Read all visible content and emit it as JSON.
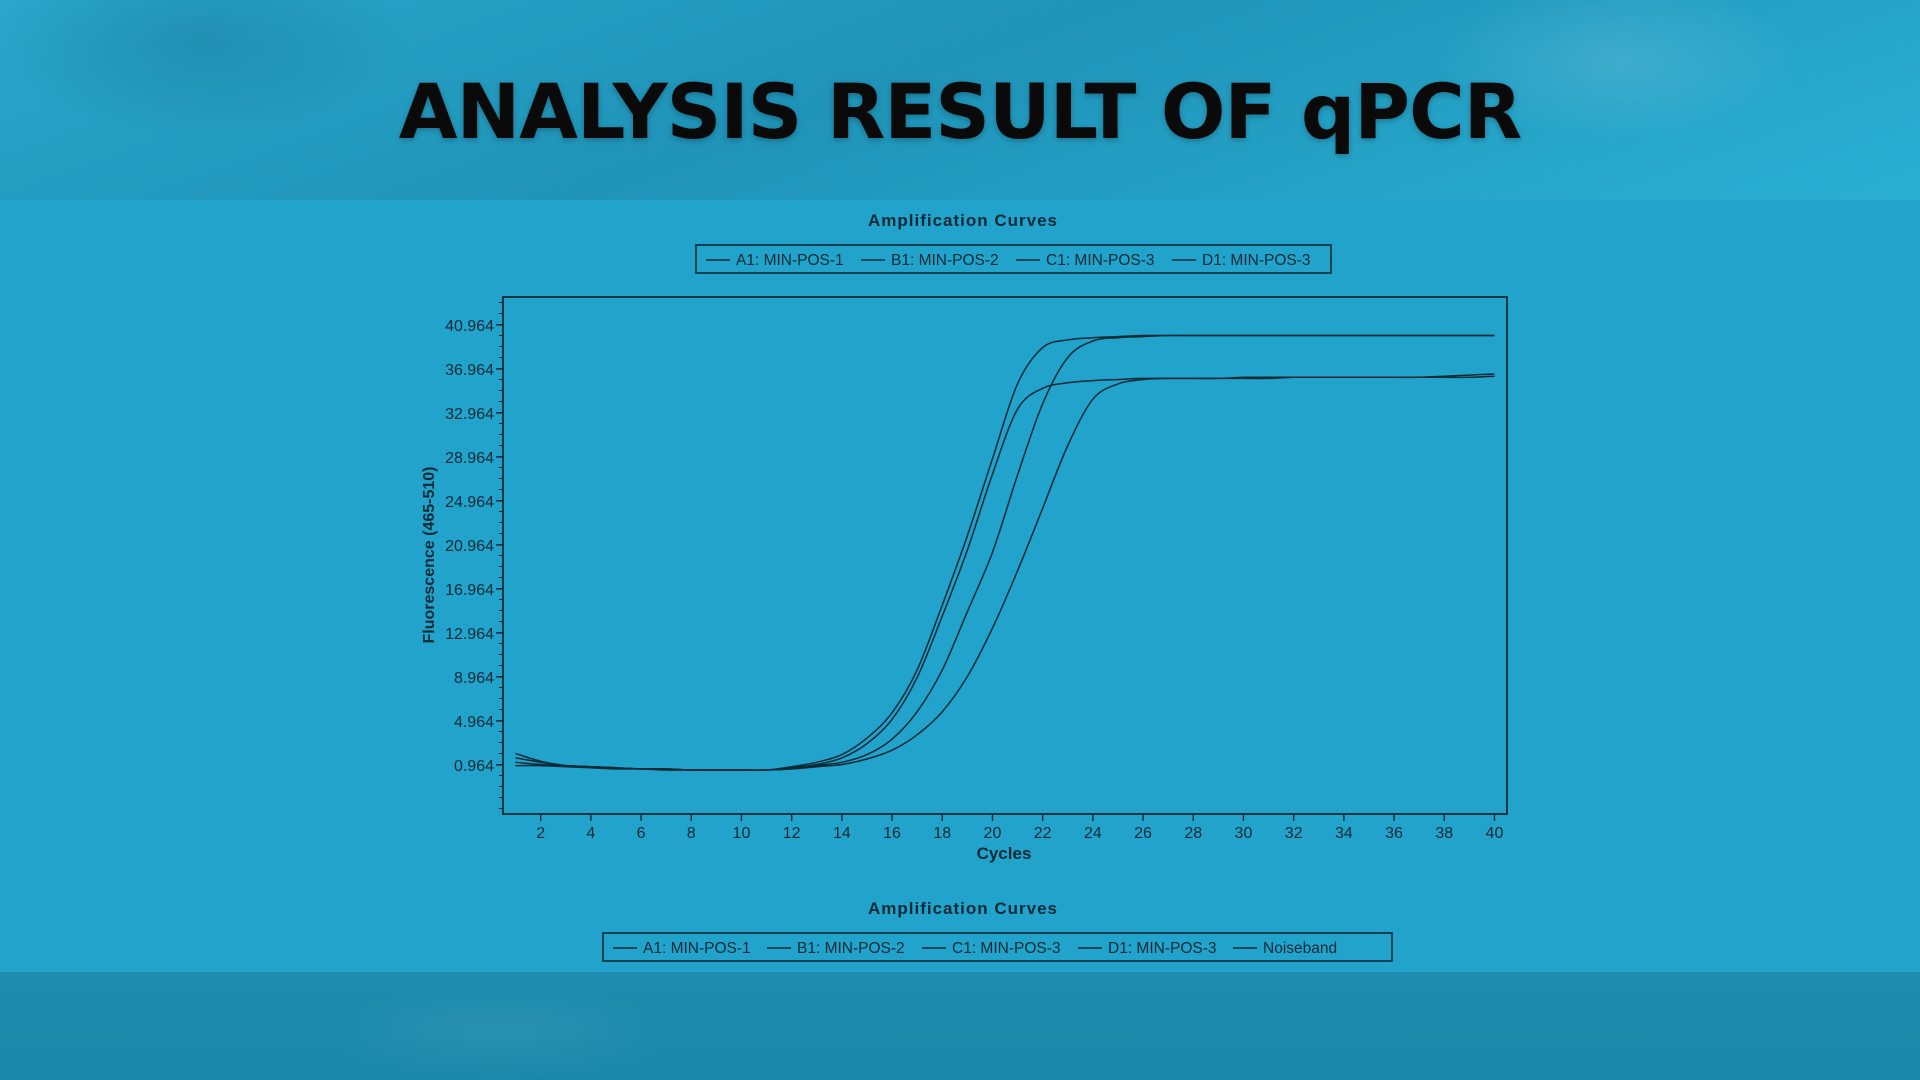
{
  "slide": {
    "title": "ANALYSIS RESULT OF qPCR"
  },
  "colors": {
    "header": "#2aa7cb",
    "panel": "#21a3cb",
    "footer": "#1c88a9",
    "ink": "#0c2a36"
  },
  "chart_data": {
    "type": "line",
    "title": "Amplification Curves",
    "xlabel": "Cycles",
    "ylabel": "Fluorescence (465-510)",
    "xlim": [
      0.5,
      40.5
    ],
    "ylim": [
      -3.5,
      43.5
    ],
    "x_ticks": [
      "2",
      "4",
      "6",
      "8",
      "10",
      "12",
      "14",
      "16",
      "18",
      "20",
      "22",
      "24",
      "26",
      "28",
      "30",
      "32",
      "34",
      "36",
      "38",
      "40"
    ],
    "y_ticks": [
      "0.964",
      "4.964",
      "8.964",
      "12.964",
      "16.964",
      "20.964",
      "24.964",
      "28.964",
      "32.964",
      "36.964",
      "40.964"
    ],
    "x_tick_values": [
      2,
      4,
      6,
      8,
      10,
      12,
      14,
      16,
      18,
      20,
      22,
      24,
      26,
      28,
      30,
      32,
      34,
      36,
      38,
      40
    ],
    "y_tick_values": [
      0.964,
      4.964,
      8.964,
      12.964,
      16.964,
      20.964,
      24.964,
      28.964,
      32.964,
      36.964,
      40.964
    ],
    "legend_top": {
      "entries": [
        "A1: MIN-POS-1",
        "B1: MIN-POS-2",
        "C1: MIN-POS-3",
        "D1: MIN-POS-3"
      ]
    },
    "bottom_title": "Amplification Curves",
    "legend_bottom": {
      "entries": [
        "A1: MIN-POS-1",
        "B1: MIN-POS-2",
        "C1: MIN-POS-3",
        "D1: MIN-POS-3",
        "Noiseband"
      ]
    },
    "x": [
      1,
      2,
      3,
      4,
      5,
      6,
      7,
      8,
      9,
      10,
      11,
      12,
      13,
      14,
      15,
      16,
      17,
      18,
      19,
      20,
      21,
      22,
      23,
      24,
      25,
      26,
      27,
      28,
      29,
      30,
      31,
      32,
      33,
      34,
      35,
      36,
      37,
      38,
      39,
      40
    ],
    "series": [
      {
        "name": "A1: MIN-POS-1",
        "values": [
          2.0,
          1.3,
          0.9,
          0.8,
          0.7,
          0.6,
          0.6,
          0.5,
          0.5,
          0.5,
          0.5,
          0.8,
          1.2,
          1.9,
          3.4,
          5.7,
          9.6,
          15.5,
          21.8,
          28.8,
          35.6,
          38.9,
          39.6,
          39.8,
          39.9,
          40.0,
          40.0,
          40.0,
          40.0,
          40.0,
          40.0,
          40.0,
          40.0,
          40.0,
          40.0,
          40.0,
          40.0,
          40.0,
          40.0,
          40.0
        ]
      },
      {
        "name": "B1: MIN-POS-2",
        "values": [
          1.6,
          1.2,
          0.9,
          0.8,
          0.7,
          0.6,
          0.6,
          0.5,
          0.5,
          0.5,
          0.5,
          0.7,
          1.0,
          1.6,
          2.9,
          5.1,
          8.9,
          14.5,
          20.5,
          27.4,
          33.3,
          35.2,
          35.7,
          35.9,
          36.0,
          36.1,
          36.1,
          36.1,
          36.1,
          36.2,
          36.2,
          36.2,
          36.2,
          36.2,
          36.2,
          36.2,
          36.2,
          36.2,
          36.2,
          36.3
        ]
      },
      {
        "name": "C1: MIN-POS-3",
        "values": [
          1.2,
          1.0,
          0.9,
          0.8,
          0.7,
          0.6,
          0.6,
          0.5,
          0.5,
          0.5,
          0.5,
          0.6,
          0.9,
          1.2,
          1.9,
          3.3,
          5.8,
          9.6,
          14.9,
          20.3,
          27.3,
          33.8,
          38.0,
          39.5,
          39.8,
          39.9,
          40.0,
          40.0,
          40.0,
          40.0,
          40.0,
          40.0,
          40.0,
          40.0,
          40.0,
          40.0,
          40.0,
          40.0,
          40.0,
          40.0
        ]
      },
      {
        "name": "D1: MIN-POS-3",
        "values": [
          0.9,
          0.9,
          0.8,
          0.7,
          0.6,
          0.6,
          0.5,
          0.5,
          0.5,
          0.5,
          0.5,
          0.6,
          0.8,
          1.0,
          1.5,
          2.3,
          3.7,
          5.8,
          9.0,
          13.4,
          18.6,
          24.3,
          30.0,
          34.2,
          35.6,
          36.0,
          36.1,
          36.1,
          36.1,
          36.1,
          36.1,
          36.2,
          36.2,
          36.2,
          36.2,
          36.2,
          36.2,
          36.3,
          36.4,
          36.5
        ]
      }
    ],
    "grid": false,
    "legend_placement": "top-center"
  }
}
